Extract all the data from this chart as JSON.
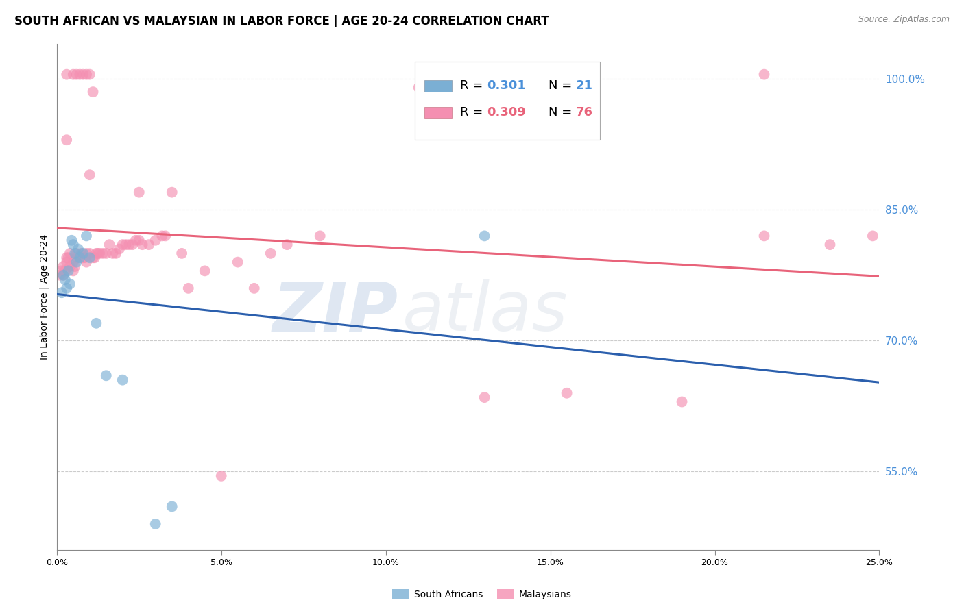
{
  "title": "SOUTH AFRICAN VS MALAYSIAN IN LABOR FORCE | AGE 20-24 CORRELATION CHART",
  "source": "Source: ZipAtlas.com",
  "ylabel": "In Labor Force | Age 20-24",
  "yticks": [
    0.55,
    0.7,
    0.85,
    1.0
  ],
  "ytick_labels": [
    "55.0%",
    "70.0%",
    "85.0%",
    "100.0%"
  ],
  "xmin": 0.0,
  "xmax": 0.25,
  "ymin": 0.46,
  "ymax": 1.04,
  "sa_color": "#7bafd4",
  "my_color": "#f48fb1",
  "sa_line_color": "#2b5fad",
  "my_line_color": "#e8637a",
  "dashed_line_color": "#aec8e8",
  "legend_R_sa": "0.301",
  "legend_N_sa": "21",
  "legend_R_my": "0.309",
  "legend_N_my": "76",
  "watermark_zip": "ZIP",
  "watermark_atlas": "atlas",
  "title_fontsize": 12,
  "axis_label_fontsize": 10,
  "tick_fontsize": 9,
  "legend_fontsize": 13,
  "source_fontsize": 9
}
